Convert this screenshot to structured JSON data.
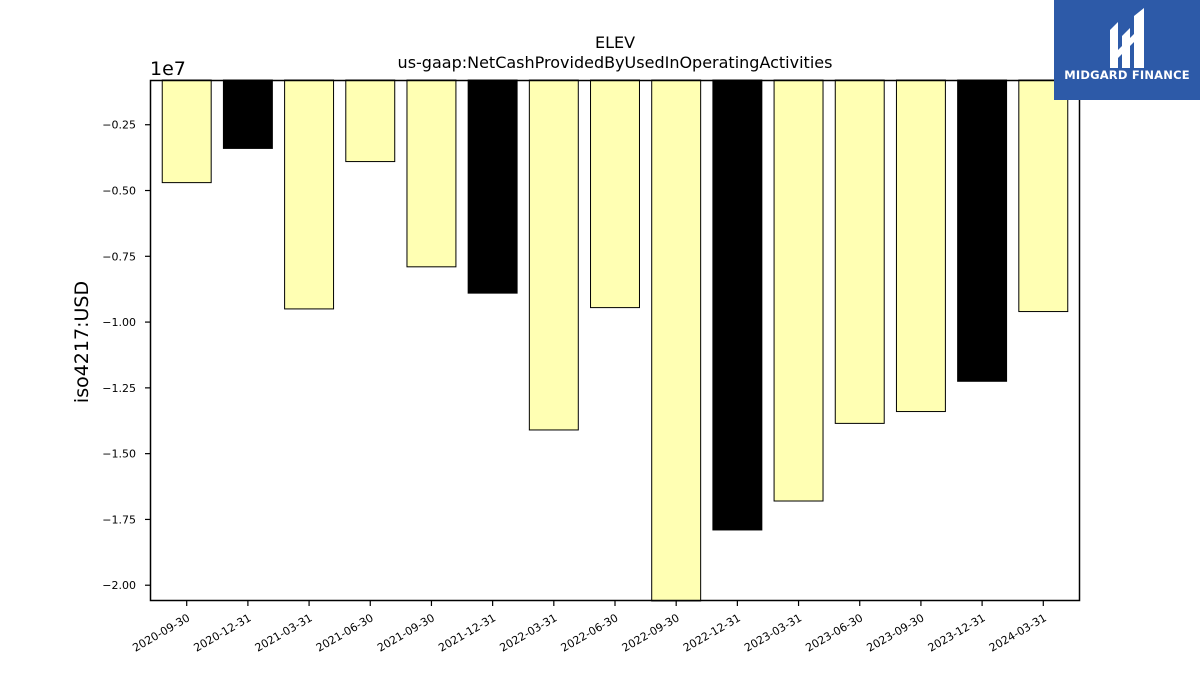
{
  "chart_data": {
    "type": "bar",
    "title": "ELEV",
    "subtitle": "us-gaap:NetCashProvidedByUsedInOperatingActivities",
    "ylabel": "iso4217:USD",
    "xlabel": "",
    "scale_label": "1e7",
    "categories": [
      "2020-09-30",
      "2020-12-31",
      "2021-03-31",
      "2021-06-30",
      "2021-09-30",
      "2021-12-31",
      "2022-03-31",
      "2022-06-30",
      "2022-09-30",
      "2022-12-31",
      "2023-03-31",
      "2023-06-30",
      "2023-09-30",
      "2023-12-31",
      "2024-03-31"
    ],
    "values": [
      -4700000.0,
      -3400000.0,
      -9500000.0,
      -3900000.0,
      -7900000.0,
      -8900000.0,
      -14100000.0,
      -9450000.0,
      -20600000.0,
      -17900000.0,
      -16800000.0,
      -13850000.0,
      -13400000.0,
      -12250000.0,
      -9600000.0
    ],
    "bar_colors": [
      "#ffffb3",
      "#000000",
      "#ffffb3",
      "#ffffb3",
      "#ffffb3",
      "#000000",
      "#ffffb3",
      "#ffffb3",
      "#ffffb3",
      "#000000",
      "#ffffb3",
      "#ffffb3",
      "#ffffb3",
      "#000000",
      "#ffffb3"
    ],
    "ylim": [
      -20600000.0,
      -800000.0
    ],
    "yticks": [
      -2500000.0,
      -5000000.0,
      -7500000.0,
      -10000000.0,
      -12500000.0,
      -15000000.0,
      -17500000.0,
      -20000000.0
    ],
    "ytick_labels": [
      "−0.25",
      "−0.50",
      "−0.75",
      "−1.00",
      "−1.25",
      "−1.50",
      "−1.75",
      "−2.00"
    ],
    "grid": false,
    "legend": "none"
  },
  "logo": {
    "text": "MIDGARD FINANCE",
    "color": "#2d5aa8"
  }
}
